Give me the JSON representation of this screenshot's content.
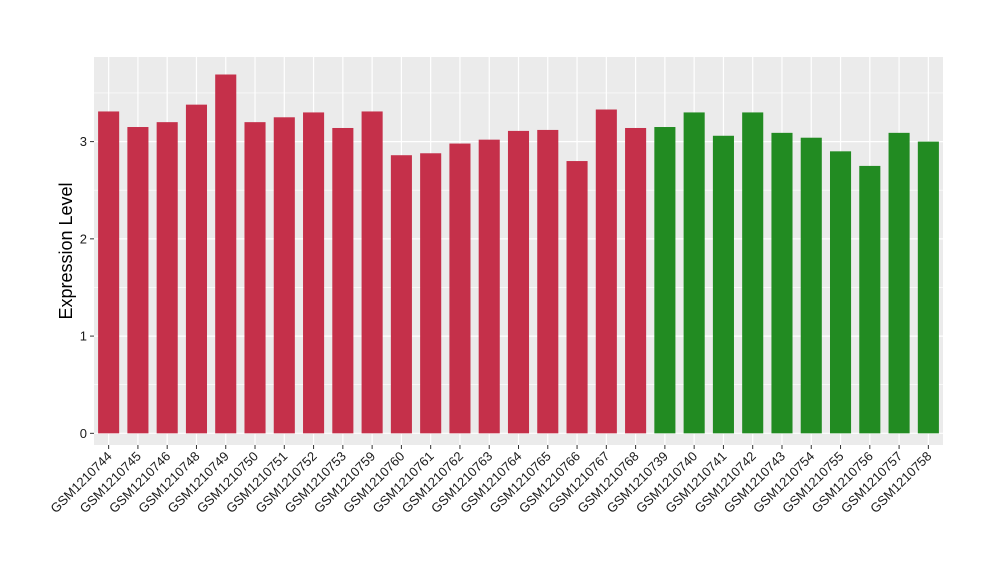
{
  "chart_data": {
    "type": "bar",
    "title": "",
    "xlabel": "",
    "ylabel": "Expression Level",
    "ylim": [
      -0.12,
      3.87
    ],
    "yticks": [
      0,
      1,
      2,
      3
    ],
    "grid": true,
    "legend": "none",
    "categories": [
      "GSM1210744",
      "GSM1210745",
      "GSM1210746",
      "GSM1210748",
      "GSM1210749",
      "GSM1210750",
      "GSM1210751",
      "GSM1210752",
      "GSM1210753",
      "GSM1210759",
      "GSM1210760",
      "GSM1210761",
      "GSM1210762",
      "GSM1210763",
      "GSM1210764",
      "GSM1210765",
      "GSM1210766",
      "GSM1210767",
      "GSM1210768",
      "GSM1210739",
      "GSM1210740",
      "GSM1210741",
      "GSM1210742",
      "GSM1210743",
      "GSM1210754",
      "GSM1210755",
      "GSM1210756",
      "GSM1210757",
      "GSM1210758"
    ],
    "values": [
      3.31,
      3.15,
      3.2,
      3.38,
      3.69,
      3.2,
      3.25,
      3.3,
      3.14,
      3.31,
      2.86,
      2.88,
      2.98,
      3.02,
      3.11,
      3.12,
      2.8,
      3.33,
      3.14,
      3.15,
      3.3,
      3.06,
      3.3,
      3.09,
      3.04,
      2.9,
      2.75,
      3.09,
      3.0
    ],
    "group_sizes": [
      19,
      10
    ],
    "colors": [
      "#c5304a",
      "#228b22"
    ],
    "panel_background": "#ebebeb",
    "grid_color": "#ffffff"
  }
}
